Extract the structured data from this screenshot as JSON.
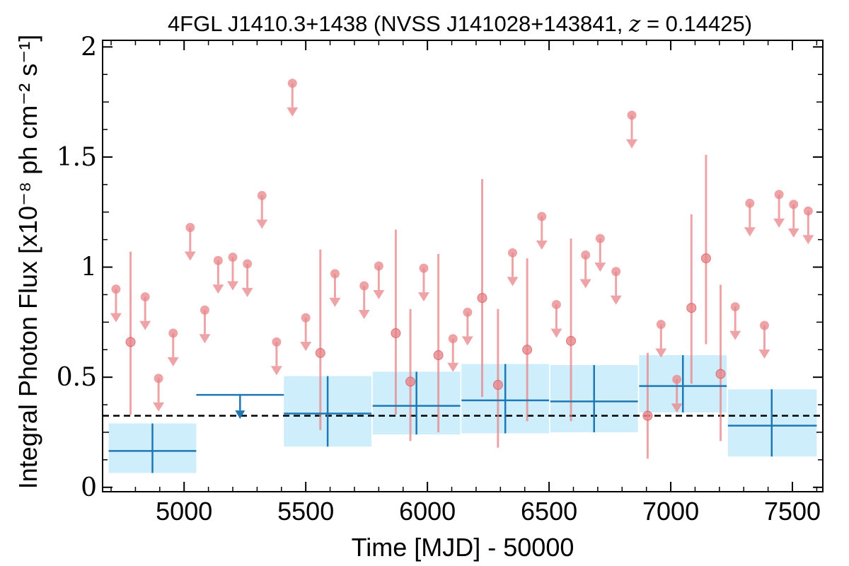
{
  "chart_data": {
    "type": "scatter",
    "title": "4FGL J1410.3+1438 (NVSS J141028+143841, z = 0.14425)",
    "title_parts": {
      "prefix": "4FGL J1410.3+1438 (NVSS J141028+143841, ",
      "z_symbol": "z",
      "z_value": " = 0.14425",
      "suffix": ")"
    },
    "xlabel": "Time [MJD] - 50000",
    "ylabel": "Integral Photon Flux [x10⁻⁸ ph cm⁻² s⁻¹]",
    "xlim": [
      4665,
      7625
    ],
    "ylim": [
      -0.02,
      2.03
    ],
    "xticks": [
      5000,
      5500,
      6000,
      6500,
      7000,
      7500
    ],
    "yticks": [
      0,
      0.5,
      1,
      1.5,
      2
    ],
    "ytick_labels": [
      "0",
      "0.5",
      "1",
      "1.5",
      "2"
    ],
    "mean_flux": 0.325,
    "colors": {
      "monthly": "#e8868a",
      "yearly": "#1f77b4",
      "band": "#cfeefc",
      "mean_line": "#000000"
    },
    "series": [
      {
        "name": "monthly_upper_limits",
        "x": [
          4720,
          4840,
          4895,
          4955,
          5025,
          5085,
          5140,
          5200,
          5260,
          5320,
          5380,
          5445,
          5500,
          5620,
          5740,
          5800,
          5985,
          6105,
          6165,
          6350,
          6470,
          6530,
          6650,
          6710,
          6775,
          6840,
          6960,
          7025,
          7265,
          7325,
          7385,
          7445,
          7505,
          7565
        ],
        "y": [
          0.9,
          0.865,
          0.495,
          0.7,
          1.18,
          0.805,
          1.03,
          1.045,
          1.015,
          1.325,
          0.66,
          1.835,
          0.77,
          0.97,
          0.915,
          1.005,
          0.995,
          0.675,
          0.795,
          1.065,
          1.23,
          0.83,
          1.055,
          1.13,
          0.98,
          1.69,
          0.74,
          0.49,
          0.82,
          1.29,
          0.735,
          1.33,
          1.285,
          1.255
        ]
      },
      {
        "name": "monthly_detections",
        "x": [
          4780,
          5560,
          5870,
          5930,
          6045,
          6225,
          6290,
          6410,
          6590,
          6905,
          7085,
          7145,
          7205
        ],
        "y": [
          0.66,
          0.61,
          0.7,
          0.48,
          0.6,
          0.86,
          0.465,
          0.625,
          0.665,
          0.325,
          0.815,
          1.04,
          0.515
        ],
        "y_low": [
          0.33,
          0.26,
          0.33,
          0.21,
          0.25,
          0.41,
          0.18,
          0.3,
          0.3,
          0.13,
          0.47,
          0.65,
          0.21
        ],
        "y_high": [
          1.07,
          1.08,
          1.17,
          0.81,
          1.06,
          1.4,
          0.81,
          1.04,
          1.13,
          0.61,
          1.24,
          1.51,
          0.92
        ]
      },
      {
        "name": "yearly_detections",
        "x": [
          4870,
          5590,
          5955,
          6320,
          6685,
          7050,
          7415
        ],
        "x_low": [
          4690,
          5410,
          5775,
          6140,
          6505,
          6870,
          7235
        ],
        "x_high": [
          5050,
          5770,
          6135,
          6500,
          6865,
          7230,
          7600
        ],
        "y": [
          0.165,
          0.335,
          0.37,
          0.395,
          0.39,
          0.46,
          0.28
        ],
        "y_low": [
          0.065,
          0.185,
          0.24,
          0.245,
          0.25,
          0.34,
          0.14
        ],
        "y_high": [
          0.29,
          0.505,
          0.525,
          0.56,
          0.555,
          0.6,
          0.445
        ]
      },
      {
        "name": "yearly_upper_limit",
        "x": [
          5230
        ],
        "x_low": [
          5050
        ],
        "x_high": [
          5410
        ],
        "y": [
          0.42
        ]
      }
    ]
  }
}
